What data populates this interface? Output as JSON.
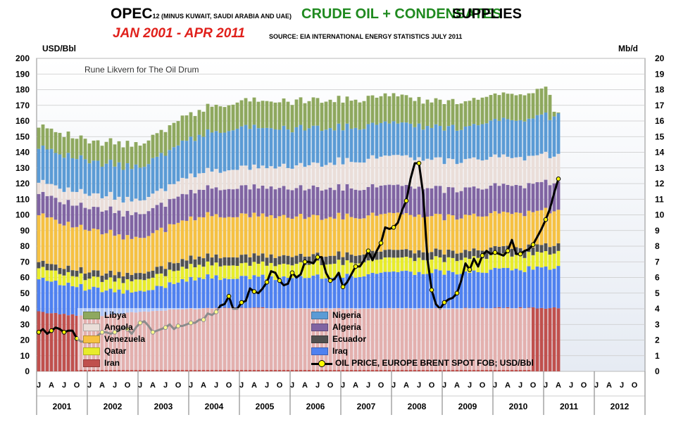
{
  "header": {
    "title_prefix": "OPEC",
    "title_subscript": "12 (MINUS KUWAIT,  SAUDI ARABIA AND UAE)",
    "title_highlight": "CRUDE OIL + CONDENSATES",
    "title_suffix": "SUPPLIES",
    "date_range": "JAN 2001 - APR 2011",
    "source": "SOURCE: EIA INTERNATIONAL ENERGY STATISTICS  JULY 2011",
    "credit": "Rune Likvern for The Oil Drum"
  },
  "chart_data": {
    "type": "bar",
    "stacked": true,
    "ylabel_left": "USD/Bbl",
    "ylabel_right": "Mb/d",
    "ylim_left": [
      0,
      200
    ],
    "ylim_right": [
      0,
      20
    ],
    "yticks_left": [
      "0",
      "10",
      "20",
      "30",
      "40",
      "50",
      "60",
      "70",
      "80",
      "90",
      "100",
      "110",
      "120",
      "130",
      "140",
      "150",
      "160",
      "170",
      "180",
      "190",
      "200"
    ],
    "yticks_right": [
      "0",
      "1",
      "2",
      "3",
      "4",
      "5",
      "6",
      "7",
      "8",
      "9",
      "10",
      "11",
      "12",
      "13",
      "14",
      "15",
      "16",
      "17",
      "18",
      "19",
      "20"
    ],
    "x_start": "2001-01",
    "x_months": 144,
    "bar_months": 124,
    "quarter_labels": [
      "J",
      "A",
      "J",
      "O"
    ],
    "years": [
      "2001",
      "2002",
      "2003",
      "2004",
      "2005",
      "2006",
      "2007",
      "2008",
      "2009",
      "2010",
      "2011",
      "2012"
    ],
    "grid": true,
    "legend_position": "bottom-left",
    "series": [
      {
        "name": "Iran",
        "color": "#c0504d",
        "axis": "right",
        "years": [
          3.8,
          3.5,
          3.8,
          4.0,
          4.1,
          4.0,
          4.0,
          4.0,
          4.0,
          4.05,
          4.05
        ],
        "noise": 0.05
      },
      {
        "name": "Iraq",
        "color": "#4f81f0",
        "axis": "right",
        "years": [
          2.2,
          1.75,
          1.2,
          2.0,
          1.9,
          2.0,
          2.1,
          2.35,
          2.35,
          2.4,
          2.55
        ],
        "noise": 0.18
      },
      {
        "name": "Qatar",
        "color": "#e8ec2a",
        "axis": "right",
        "years": [
          0.7,
          0.65,
          0.75,
          0.8,
          0.85,
          0.85,
          0.85,
          0.9,
          0.85,
          0.9,
          0.95
        ],
        "noise": 0.04
      },
      {
        "name": "Ecuador",
        "color": "#505050",
        "axis": "right",
        "years": [
          0.4,
          0.4,
          0.42,
          0.52,
          0.53,
          0.54,
          0.51,
          0.5,
          0.48,
          0.48,
          0.49
        ],
        "noise": 0.02
      },
      {
        "name": "Venezuela",
        "color": "#f6c142",
        "axis": "right",
        "years": [
          3.0,
          2.7,
          2.3,
          2.55,
          2.6,
          2.5,
          2.4,
          2.35,
          2.25,
          2.2,
          2.2
        ],
        "noise": 0.08
      },
      {
        "name": "Algeria",
        "color": "#8064a2",
        "axis": "right",
        "years": [
          1.35,
          1.4,
          1.55,
          1.7,
          1.8,
          1.82,
          1.85,
          1.82,
          1.78,
          1.75,
          1.8
        ],
        "noise": 0.04
      },
      {
        "name": "Angola",
        "color": "#eaded9",
        "axis": "right",
        "years": [
          0.75,
          0.9,
          0.9,
          1.0,
          1.25,
          1.4,
          1.7,
          1.9,
          1.8,
          1.85,
          1.75
        ],
        "noise": 0.05
      },
      {
        "name": "Nigeria",
        "color": "#5b9bd5",
        "axis": "right",
        "years": [
          2.2,
          2.1,
          2.15,
          2.35,
          2.55,
          2.4,
          2.2,
          2.1,
          2.05,
          2.3,
          2.5
        ],
        "noise": 0.1
      },
      {
        "name": "Libya",
        "color": "#8ea85e",
        "axis": "right",
        "years": [
          1.35,
          1.3,
          1.45,
          1.6,
          1.7,
          1.75,
          1.78,
          1.75,
          1.65,
          1.65,
          1.65
        ],
        "noise": 0.05,
        "note": "Libya output drops to near zero in Mar-Apr 2011"
      }
    ],
    "libya_last_two_months": [
      0.3,
      0.05
    ],
    "price_series": {
      "name": "OIL PRICE, EUROPE BRENT SPOT FOB; USD/Bbl",
      "axis": "left",
      "color": "#000000",
      "marker_color": "#ffff00",
      "values": [
        25,
        27,
        24,
        26,
        28,
        27,
        25,
        26,
        26,
        21,
        19,
        19,
        19,
        20,
        23,
        25,
        25,
        24,
        25,
        26,
        28,
        27,
        24,
        28,
        31,
        32,
        29,
        25,
        26,
        27,
        28,
        30,
        27,
        29,
        29,
        30,
        31,
        31,
        33,
        33,
        37,
        36,
        38,
        42,
        43,
        48,
        40,
        40,
        44,
        45,
        53,
        51,
        50,
        53,
        57,
        64,
        63,
        58,
        55,
        56,
        63,
        60,
        62,
        70,
        70,
        69,
        73,
        73,
        63,
        58,
        59,
        63,
        54,
        57,
        62,
        67,
        67,
        71,
        77,
        71,
        77,
        82,
        92,
        91,
        92,
        95,
        103,
        109,
        123,
        133,
        133,
        113,
        72,
        52,
        43,
        40,
        44,
        46,
        47,
        50,
        58,
        69,
        65,
        72,
        67,
        74,
        77,
        75,
        76,
        75,
        74,
        77,
        84,
        75,
        75,
        77,
        78,
        81,
        86,
        91,
        97,
        104,
        114,
        123
      ]
    }
  },
  "legend": {
    "items": [
      {
        "label": "Libya",
        "color": "#8ea85e"
      },
      {
        "label": "Nigeria",
        "color": "#5b9bd5"
      },
      {
        "label": "Angola",
        "color": "#eaded9"
      },
      {
        "label": "Algeria",
        "color": "#8064a2"
      },
      {
        "label": "Venezuela",
        "color": "#f6c142"
      },
      {
        "label": "Ecuador",
        "color": "#505050"
      },
      {
        "label": "Qatar",
        "color": "#e8ec2a"
      },
      {
        "label": "Iraq",
        "color": "#4f81f0"
      },
      {
        "label": "Iran",
        "color": "#c0504d"
      },
      {
        "label": "OIL PRICE, EUROPE BRENT SPOT FOB; USD/Bbl",
        "color": "#000000"
      }
    ]
  }
}
